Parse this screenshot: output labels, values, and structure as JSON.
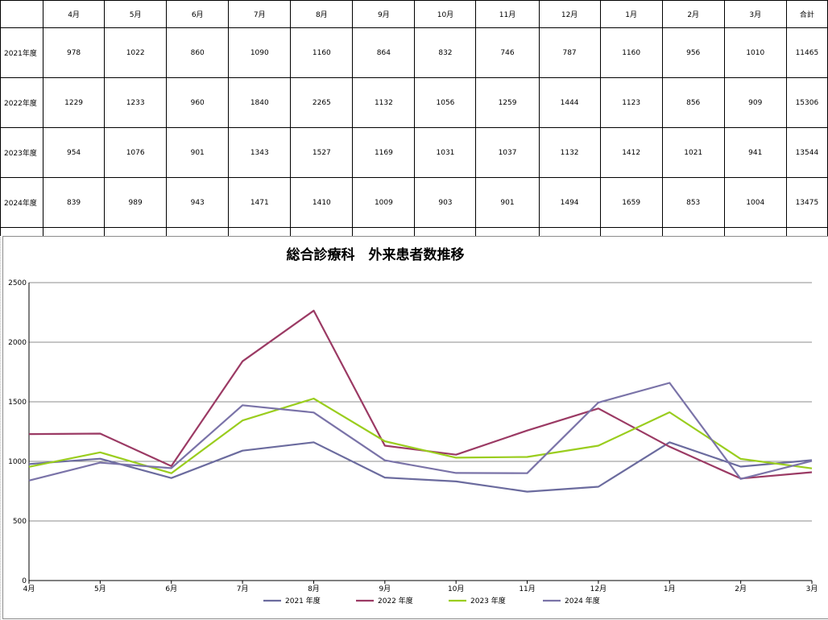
{
  "table": {
    "headers": [
      "4月",
      "5月",
      "6月",
      "7月",
      "8月",
      "9月",
      "10月",
      "11月",
      "12月",
      "1月",
      "2月",
      "3月",
      "合計"
    ],
    "rows": [
      {
        "label": "2021年度",
        "values": [
          "978",
          "1022",
          "860",
          "1090",
          "1160",
          "864",
          "832",
          "746",
          "787",
          "1160",
          "956",
          "1010",
          "11465"
        ]
      },
      {
        "label": "2022年度",
        "values": [
          "1229",
          "1233",
          "960",
          "1840",
          "2265",
          "1132",
          "1056",
          "1259",
          "1444",
          "1123",
          "856",
          "909",
          "15306"
        ]
      },
      {
        "label": "2023年度",
        "values": [
          "954",
          "1076",
          "901",
          "1343",
          "1527",
          "1169",
          "1031",
          "1037",
          "1132",
          "1412",
          "1021",
          "941",
          "13544"
        ]
      },
      {
        "label": "2024年度",
        "values": [
          "839",
          "989",
          "943",
          "1471",
          "1410",
          "1009",
          "903",
          "901",
          "1494",
          "1659",
          "853",
          "1004",
          "13475"
        ]
      }
    ]
  },
  "chart_data": {
    "type": "line",
    "title": "総合診療科　外来患者数推移",
    "categories": [
      "4月",
      "5月",
      "6月",
      "7月",
      "8月",
      "9月",
      "10月",
      "11月",
      "12月",
      "1月",
      "2月",
      "3月"
    ],
    "ylim": [
      0,
      2500
    ],
    "yticks": [
      0,
      500,
      1000,
      1500,
      2000,
      2500
    ],
    "grid": true,
    "legend_position": "bottom",
    "series": [
      {
        "name": "2021 年度",
        "color": "#6b6b9e",
        "values": [
          978,
          1022,
          860,
          1090,
          1160,
          864,
          832,
          746,
          787,
          1160,
          956,
          1010
        ]
      },
      {
        "name": "2022 年度",
        "color": "#9b3a64",
        "values": [
          1229,
          1233,
          960,
          1840,
          2265,
          1132,
          1056,
          1259,
          1444,
          1123,
          856,
          909
        ]
      },
      {
        "name": "2023 年度",
        "color": "#9acd1e",
        "values": [
          954,
          1076,
          901,
          1343,
          1527,
          1169,
          1031,
          1037,
          1132,
          1412,
          1021,
          941
        ]
      },
      {
        "name": "2024 年度",
        "color": "#7a73a8",
        "values": [
          839,
          989,
          943,
          1471,
          1410,
          1009,
          903,
          901,
          1494,
          1659,
          853,
          1004
        ]
      }
    ]
  }
}
